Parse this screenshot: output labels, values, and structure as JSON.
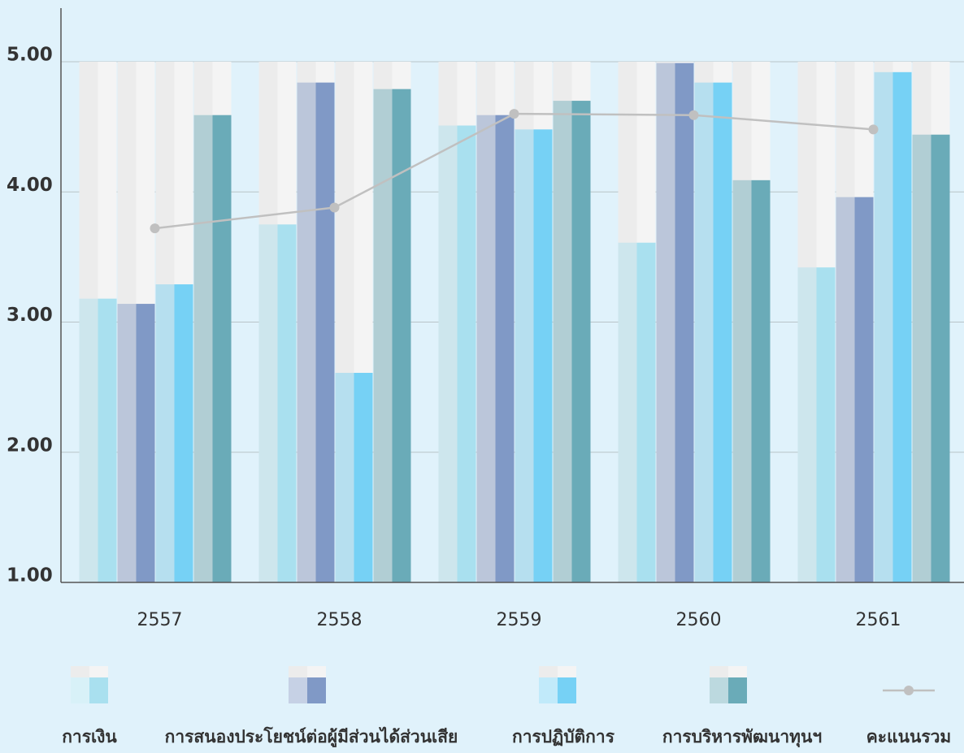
{
  "chart_data": {
    "type": "bar",
    "categories": [
      "2557",
      "2558",
      "2559",
      "2560",
      "2561"
    ],
    "series": [
      {
        "name": "การเงิน",
        "color": "#a9e0ef",
        "values": [
          3.18,
          3.75,
          4.51,
          3.61,
          3.42
        ]
      },
      {
        "name": "การสนองประโยชน์ต่อผู้มีส่วนได้ส่วนเสีย",
        "color": "#8099c6",
        "values": [
          3.14,
          4.84,
          4.59,
          4.99,
          3.96
        ]
      },
      {
        "name": "การปฏิบัติการ",
        "color": "#76d1f5",
        "values": [
          3.29,
          2.61,
          4.48,
          4.84,
          4.92
        ]
      },
      {
        "name": "การบริหารพัฒนาทุนฯ",
        "color": "#6aabb8",
        "values": [
          4.59,
          4.79,
          4.7,
          4.09,
          4.44
        ]
      },
      {
        "name": "คะแนนรวม",
        "type": "line",
        "color": "#c0c0c0",
        "values": [
          3.72,
          3.88,
          4.6,
          4.59,
          4.48
        ]
      }
    ],
    "ylim": [
      1,
      5.4
    ],
    "yticks": [
      {
        "value": 1,
        "label": "1.00"
      },
      {
        "value": 2,
        "label": "2.00"
      },
      {
        "value": 3,
        "label": "3.00"
      },
      {
        "value": 4,
        "label": "4.00"
      },
      {
        "value": 5,
        "label": "5.00"
      }
    ],
    "grid": true,
    "legend": "bottom"
  }
}
